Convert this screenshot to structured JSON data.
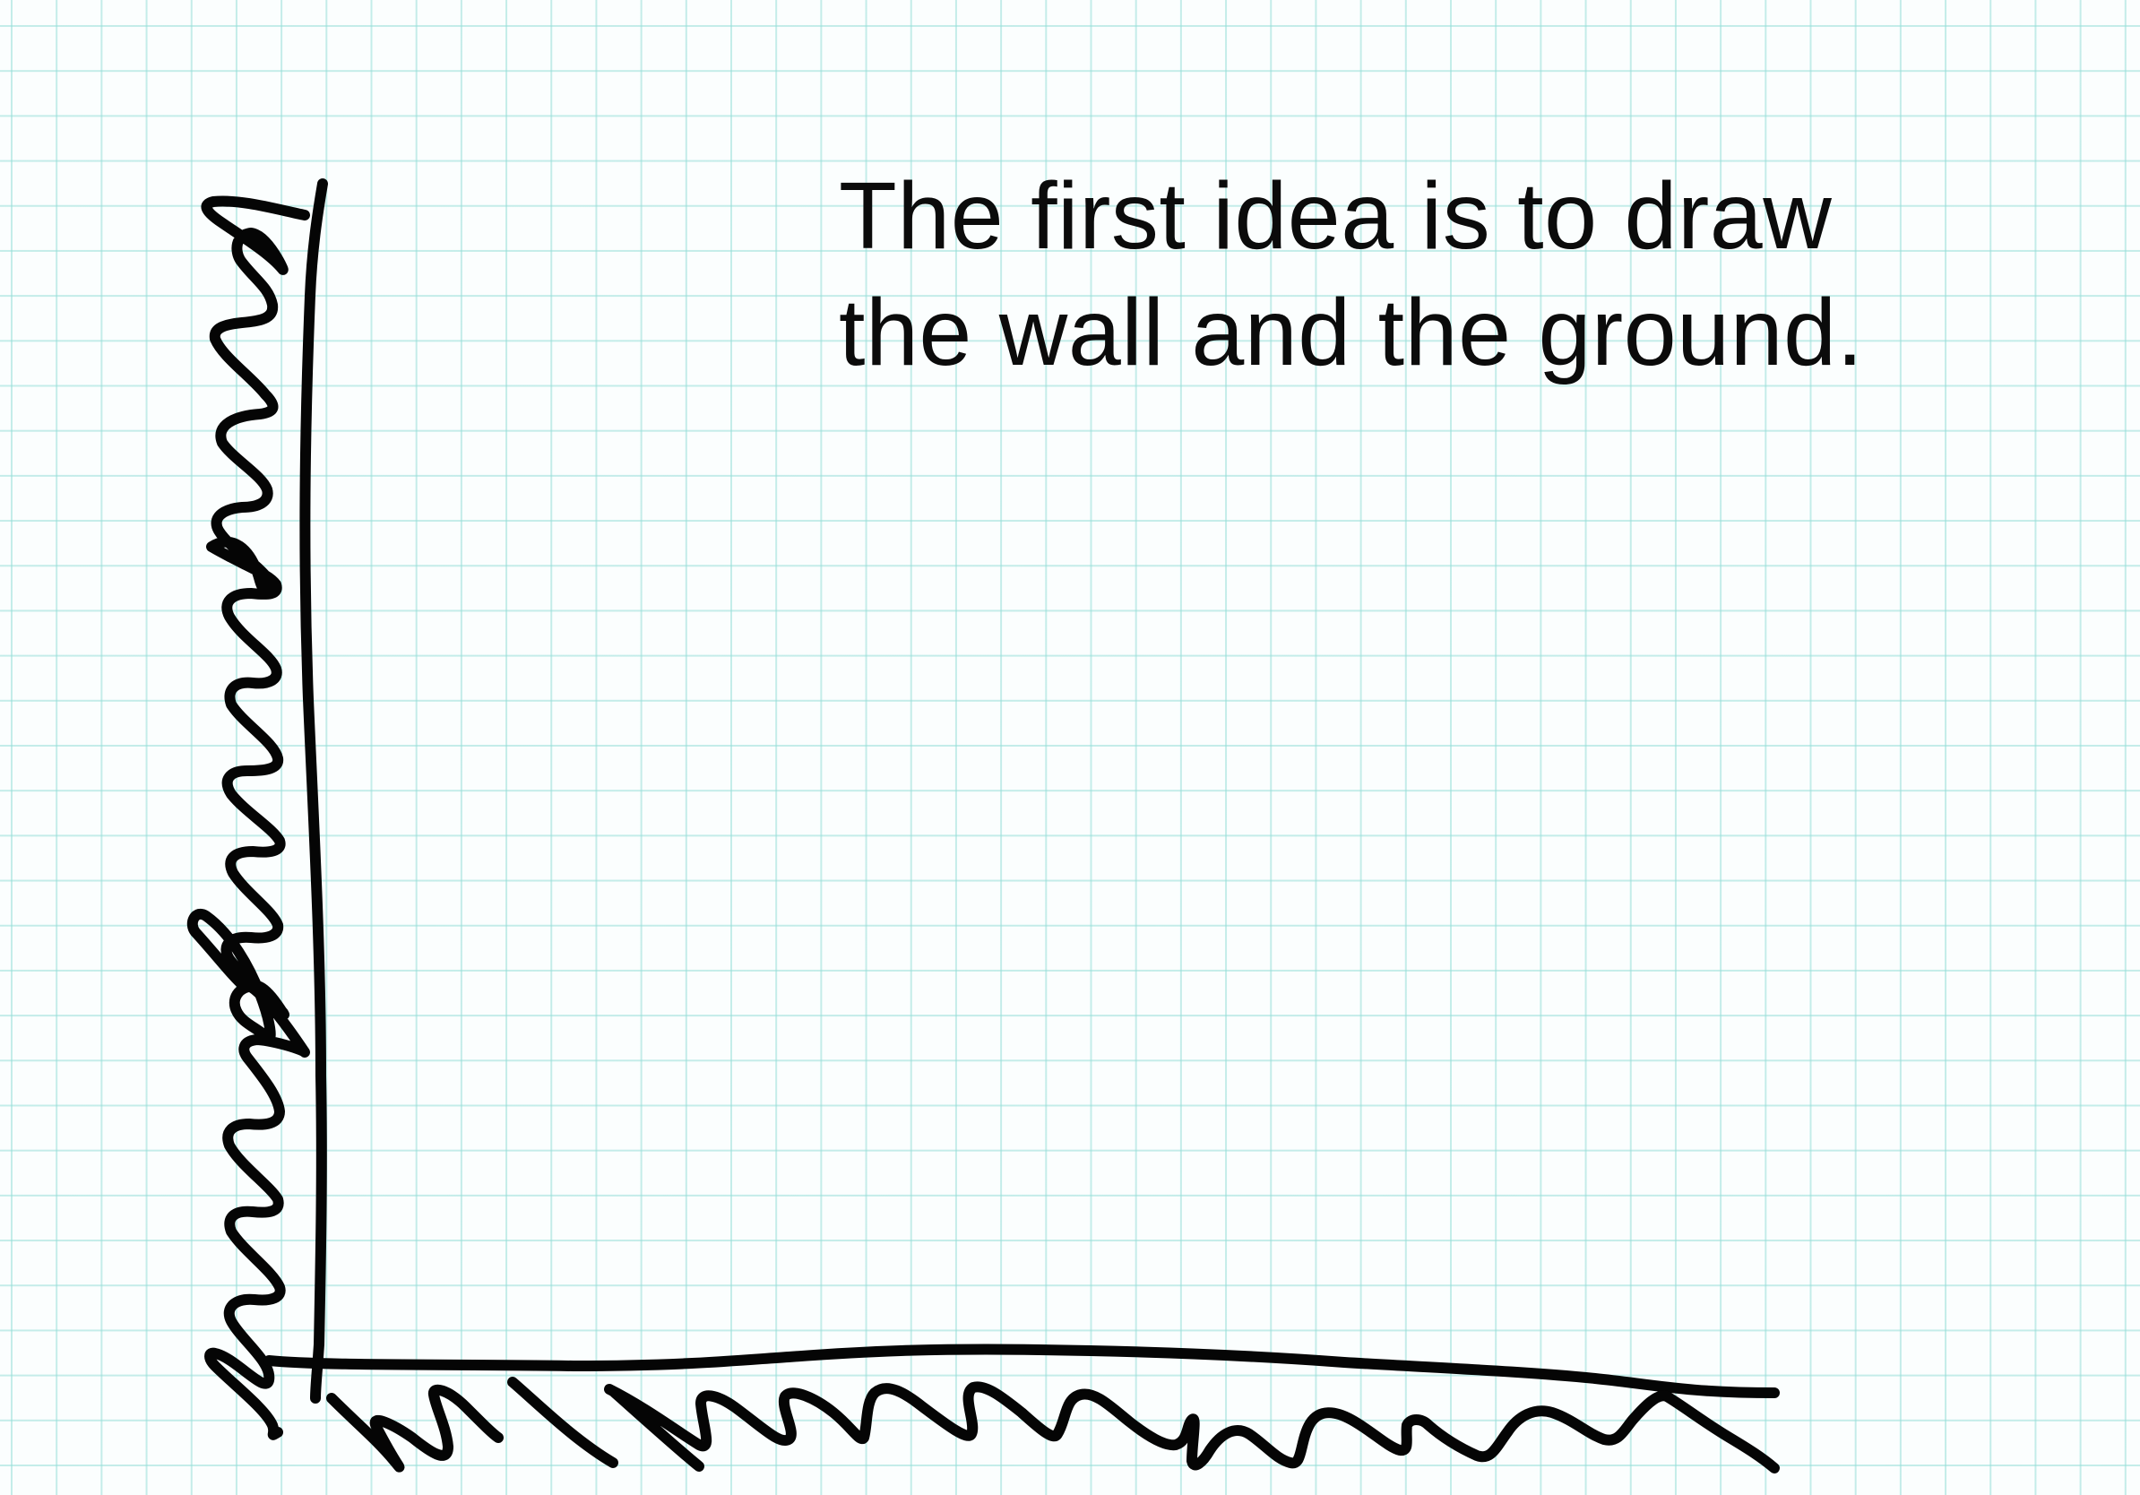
{
  "caption": {
    "line1": "The first idea is to draw",
    "line2": "the wall and the ground."
  },
  "figure": {
    "elements": [
      "wall",
      "wall-texture",
      "ground",
      "ground-texture"
    ]
  },
  "colors": {
    "ink": "#050505",
    "paper": "#fbfefe",
    "grid": "#96ded8"
  }
}
